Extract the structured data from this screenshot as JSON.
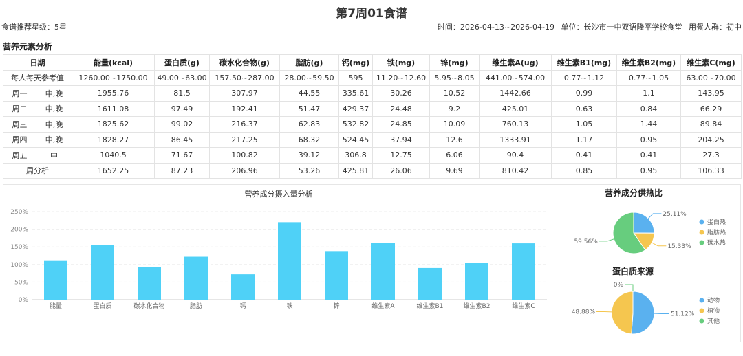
{
  "header": {
    "title": "第7周01食谱",
    "rating": "食谱推荐星级：5星",
    "time": "时间：2026-04-13~2026-04-19",
    "unit": "单位：长沙市一中双语隆平学校食堂",
    "group": "用餐人群：初中"
  },
  "section_title": "营养元素分析",
  "table": {
    "date_header": "日期",
    "columns": [
      "能量(kcal)",
      "蛋白质(g)",
      "碳水化合物(g)",
      "脂肪(g)",
      "钙(mg)",
      "铁(mg)",
      "锌(mg)",
      "维生素A(ug)",
      "维生素B1(mg)",
      "维生素B2(mg)",
      "维生素C(mg)"
    ],
    "reference": {
      "label": "每人每天参考值",
      "values": [
        "1260.00~1750.00",
        "49.00~63.00",
        "157.50~287.00",
        "28.00~59.50",
        "595",
        "11.20~12.60",
        "5.95~8.05",
        "441.00~574.00",
        "0.77~1.12",
        "0.77~1.05",
        "63.00~70.00"
      ]
    },
    "rows": [
      {
        "day": "周一",
        "meal": "中,晚",
        "values": [
          "1955.76",
          "81.5",
          "307.97",
          "44.55",
          "335.61",
          "30.26",
          "10.52",
          "1442.66",
          "0.99",
          "1.1",
          "143.95"
        ]
      },
      {
        "day": "周二",
        "meal": "中,晚",
        "values": [
          "1611.08",
          "97.49",
          "192.41",
          "51.47",
          "429.37",
          "24.48",
          "9.2",
          "425.01",
          "0.63",
          "0.84",
          "66.29"
        ]
      },
      {
        "day": "周三",
        "meal": "中,晚",
        "values": [
          "1825.62",
          "99.02",
          "216.37",
          "62.83",
          "532.82",
          "24.85",
          "10.09",
          "760.13",
          "1.05",
          "1.44",
          "89.84"
        ]
      },
      {
        "day": "周四",
        "meal": "中,晚",
        "values": [
          "1828.27",
          "86.45",
          "217.25",
          "68.32",
          "524.45",
          "37.94",
          "12.6",
          "1333.91",
          "1.17",
          "0.95",
          "204.25"
        ]
      },
      {
        "day": "周五",
        "meal": "中",
        "values": [
          "1040.5",
          "71.67",
          "100.82",
          "39.12",
          "306.8",
          "12.75",
          "6.06",
          "90.4",
          "0.41",
          "0.41",
          "27.3"
        ]
      }
    ],
    "summary": {
      "label": "周分析",
      "values": [
        "1652.25",
        "87.23",
        "206.96",
        "53.26",
        "425.81",
        "26.06",
        "9.69",
        "810.42",
        "0.85",
        "0.95",
        "106.33"
      ]
    }
  },
  "chart_data": [
    {
      "type": "bar",
      "title": "营养成分摄入量分析",
      "categories": [
        "能量",
        "蛋白质",
        "碳水化合物",
        "脂肪",
        "钙",
        "铁",
        "锌",
        "维生素A",
        "维生素B1",
        "维生素B2",
        "维生素C"
      ],
      "values": [
        110,
        156,
        93,
        122,
        72,
        220,
        138,
        161,
        90,
        104,
        160
      ],
      "ylim": [
        0,
        250
      ],
      "yticks": [
        "0%",
        "50%",
        "100%",
        "150%",
        "200%",
        "250%"
      ],
      "grid": true,
      "color": "#4fd1f7"
    },
    {
      "type": "pie",
      "title": "营养成分供热比",
      "slices": [
        {
          "name": "蛋白热",
          "value": 25.11,
          "label": "25.11%",
          "color": "#5ab1ef"
        },
        {
          "name": "脂肪热",
          "value": 15.33,
          "label": "15.33%",
          "color": "#f5c64f"
        },
        {
          "name": "碳水热",
          "value": 59.56,
          "label": "59.56%",
          "color": "#67cd7e"
        }
      ],
      "legend": "right"
    },
    {
      "type": "pie",
      "title": "蛋白质来源",
      "slices": [
        {
          "name": "动物",
          "value": 51.12,
          "label": "51.12%",
          "color": "#5ab1ef"
        },
        {
          "name": "植物",
          "value": 48.88,
          "label": "48.88%",
          "color": "#f5c64f"
        },
        {
          "name": "其他",
          "value": 0,
          "label": "0%",
          "color": "#67cd7e"
        }
      ],
      "legend": "right"
    }
  ]
}
